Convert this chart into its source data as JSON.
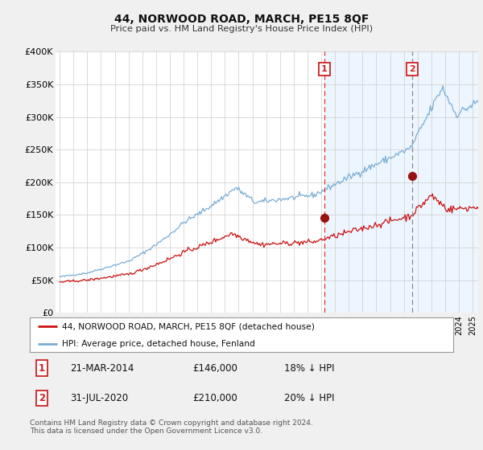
{
  "title": "44, NORWOOD ROAD, MARCH, PE15 8QF",
  "subtitle": "Price paid vs. HM Land Registry's House Price Index (HPI)",
  "ylabel_ticks": [
    "£0",
    "£50K",
    "£100K",
    "£150K",
    "£200K",
    "£250K",
    "£300K",
    "£350K",
    "£400K"
  ],
  "ytick_vals": [
    0,
    50000,
    100000,
    150000,
    200000,
    250000,
    300000,
    350000,
    400000
  ],
  "ylim": [
    0,
    400000
  ],
  "xlim_start": 1994.7,
  "xlim_end": 2025.4,
  "red_line_color": "#cc1111",
  "blue_line_color": "#7aadd4",
  "vline1_color": "#dd3333",
  "vline1_style": "--",
  "vline2_color": "#888888",
  "vline2_style": "--",
  "shade_color": "#ddeeff",
  "shade_alpha": 0.5,
  "vline_x1": 2014.22,
  "vline_x2": 2020.58,
  "marker1_x": 2014.22,
  "marker1_y": 146000,
  "marker2_x": 2020.58,
  "marker2_y": 210000,
  "marker_color": "#991111",
  "legend_label_red": "44, NORWOOD ROAD, MARCH, PE15 8QF (detached house)",
  "legend_label_blue": "HPI: Average price, detached house, Fenland",
  "annotation1_num": "1",
  "annotation1_date": "21-MAR-2014",
  "annotation1_price": "£146,000",
  "annotation1_hpi": "18% ↓ HPI",
  "annotation2_num": "2",
  "annotation2_date": "31-JUL-2020",
  "annotation2_price": "£210,000",
  "annotation2_hpi": "20% ↓ HPI",
  "footer": "Contains HM Land Registry data © Crown copyright and database right 2024.\nThis data is licensed under the Open Government Licence v3.0.",
  "bg_color": "#f0f0f0",
  "plot_bg_color": "#ffffff",
  "grid_color": "#cccccc",
  "box1_edge_color": "#cc2222",
  "box2_edge_color": "#cc2222",
  "num_box_text_color": "#cc2222"
}
